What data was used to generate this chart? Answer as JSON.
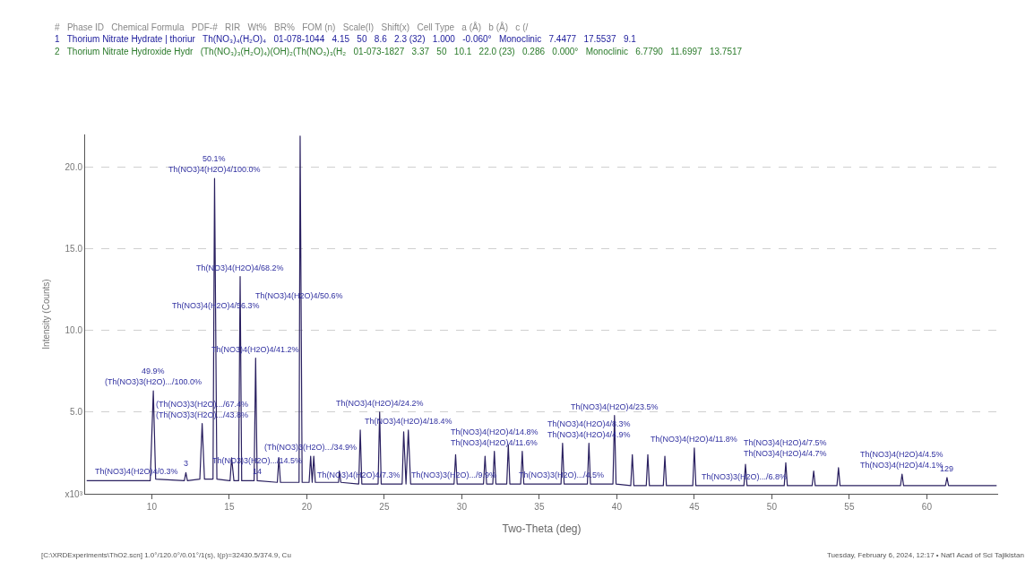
{
  "chart_data": {
    "type": "line",
    "xlabel": "Two-Theta (deg)",
    "ylabel": "Intensity (Counts)",
    "xlim": [
      5.7,
      64.6
    ],
    "xticks": [
      10,
      15,
      20,
      25,
      30,
      35,
      40,
      45,
      50,
      55,
      60
    ],
    "ylim": [
      0,
      22
    ],
    "yticks": [
      {
        "value": 0,
        "label": "x10³"
      },
      {
        "value": 5,
        "label": "5.0"
      },
      {
        "value": 10,
        "label": "10.0"
      },
      {
        "value": 15,
        "label": "15.0"
      },
      {
        "value": 20,
        "label": "20.0"
      }
    ],
    "grid": "y",
    "marker": "none",
    "line_style": "solid",
    "series": [
      {
        "color": "#2a2060",
        "x": [
          5.8,
          9.9,
          10.1,
          10.25,
          12.1,
          12.2,
          12.3,
          13.1,
          13.25,
          13.4,
          13.95,
          14.05,
          14.2,
          15.05,
          15.15,
          15.3,
          15.6,
          15.7,
          15.8,
          16.6,
          16.7,
          16.8,
          18.1,
          18.2,
          18.3,
          19.5,
          19.57,
          19.7,
          20.15,
          20.25,
          20.35,
          20.45,
          20.55,
          22.05,
          22.1,
          22.2,
          23.35,
          23.45,
          23.55,
          24.6,
          24.7,
          24.8,
          26.15,
          26.25,
          26.4,
          26.55,
          26.7,
          29.5,
          29.6,
          29.7,
          31.4,
          31.5,
          31.6,
          32.0,
          32.1,
          32.2,
          32.9,
          33.0,
          33.1,
          33.8,
          33.9,
          34.0,
          36.4,
          36.5,
          36.6,
          38.1,
          38.2,
          38.3,
          39.75,
          39.85,
          39.95,
          40.9,
          41.0,
          41.1,
          41.9,
          42.0,
          42.1,
          43.0,
          43.1,
          43.2,
          44.9,
          45.0,
          45.1,
          48.2,
          48.3,
          48.4,
          50.8,
          50.9,
          51.0,
          52.6,
          52.7,
          52.8,
          54.2,
          54.3,
          54.4,
          58.3,
          58.4,
          58.5,
          61.2,
          61.3,
          61.4,
          64.5
        ],
        "values": [
          0.8,
          0.8,
          6.3,
          0.9,
          0.8,
          1.3,
          0.8,
          0.9,
          4.3,
          0.9,
          0.9,
          19.3,
          0.9,
          0.8,
          2.2,
          0.8,
          0.8,
          13.3,
          0.8,
          0.8,
          8.3,
          0.8,
          0.7,
          2.2,
          0.7,
          0.7,
          21.9,
          0.7,
          0.7,
          2.3,
          0.7,
          2.3,
          0.7,
          0.7,
          1.4,
          0.7,
          0.6,
          3.9,
          0.6,
          0.6,
          5.0,
          0.6,
          0.6,
          3.8,
          0.6,
          3.9,
          0.6,
          0.6,
          2.4,
          0.6,
          0.6,
          2.3,
          0.6,
          0.6,
          2.6,
          0.6,
          0.6,
          3.0,
          0.6,
          0.6,
          2.6,
          0.6,
          0.6,
          3.1,
          0.6,
          0.6,
          3.1,
          0.6,
          0.6,
          4.8,
          0.6,
          0.5,
          2.4,
          0.5,
          0.5,
          2.4,
          0.5,
          0.5,
          2.3,
          0.5,
          0.5,
          2.8,
          0.5,
          0.5,
          1.8,
          0.5,
          0.5,
          1.9,
          0.5,
          0.5,
          1.4,
          0.5,
          0.5,
          1.6,
          0.5,
          0.5,
          1.2,
          0.5,
          0.5,
          1.0,
          0.5,
          0.5
        ]
      }
    ],
    "annotations": [
      "#   Phase ID   Chemical Formula   PDF-#   RIR   Wt%   BR%   FOM (n)   Scale(I)   Shift(x)   Cell Type   a (Å)   b (Å)   c (/",
      "1   Thorium Nitrate Hydrate | thoriur   Th(NO₃)₄(H₂O)₄   01-078-1044   4.15   50   8.6   2.3 (32)   1.000   -0.060°   Monoclinic   7.4477   17.5537   9.1",
      "2   Thorium Nitrate Hydroxide Hydr   (Th(NO₃)₃(H₂O)₄)(OH)₂(Th(NO₃)₃(H₂   01-073-1827   3.37   50   10.1   22.0 (23)   0.286   0.000°   Monoclinic   6.7790   11.6997   13.7517",
      "[C:\\XRDExperiments\\ThO2.scn] 1.0°/120.0°/0.01°/1(s), I(p)=32430.5/374.9, Cu",
      "Tuesday, February 6, 2024, 12:17 • Nat'l Acad of Sci Tajikistan",
      {
        "text": "50.1%",
        "x": 14.05,
        "y": 19.3
      },
      {
        "text": "Th(NO3)4(H2O)4/100.0%",
        "x": 14.05,
        "y": 19.3
      },
      {
        "text": "Th(NO3)4(H2O)4/68.2%",
        "x": 15.7,
        "y": 13.3
      },
      {
        "text": "Th(NO3)4(H2O)4/50.6%",
        "x": 19.536,
        "y": 11.6
      },
      {
        "text": "Th(NO3)4(H2O)4/56.3%",
        "x": 14.118,
        "y": 11.0
      },
      {
        "text": "Th(NO3)4(H2O)4/41.2%",
        "x": 16.7,
        "y": 8.3
      },
      {
        "text": "49.9%",
        "x": 10.1,
        "y": 6.3
      },
      {
        "text": "(Th(NO3)3(H2O).../100.0%",
        "x": 10.1,
        "y": 6.3
      },
      {
        "text": "(Th(NO3)3(H2O).../67.4%",
        "x": 13.25,
        "y": 4.3
      },
      {
        "text": "(Th(NO3)3(H2O).../43.8%",
        "x": 13.25,
        "y": 4.3
      },
      {
        "text": "Th(NO3)4(H2O)4/0.3%",
        "x": 9.0,
        "y": 0.8
      },
      {
        "text": "3",
        "x": 12.2,
        "y": 1.3
      },
      {
        "text": "Th(NO3)3(H2O).../14.5%",
        "x": 16.8,
        "y": 0.8
      },
      {
        "text": "14",
        "x": 16.8,
        "y": 0.8
      },
      {
        "text": "(Th(NO3)3(H2O).../34.9%",
        "x": 20.25,
        "y": 2.3
      },
      {
        "text": "Th(NO3)4(H2O)4/24.2%",
        "x": 24.7,
        "y": 5.0
      },
      {
        "text": "Th(NO3)4(H2O)4/18.4%",
        "x": 26.55,
        "y": 3.9
      },
      {
        "text": "Th(NO3)4(H2O)4/7.3%",
        "x": 23.35,
        "y": 0.6
      },
      {
        "text": "Th(NO3)3(H2O).../9.9%",
        "x": 29.5,
        "y": 0.6
      },
      {
        "text": "Th(NO3)4(H2O)4/14.8%",
        "x": 32.1,
        "y": 2.6
      },
      {
        "text": "Th(NO3)4(H2O)4/11.6%",
        "x": 32.1,
        "y": 2.6
      },
      {
        "text": "Th(NO3)4(H2O)4/8.3%",
        "x": 38.2,
        "y": 3.1
      },
      {
        "text": "Th(NO3)4(H2O)4/4.9%",
        "x": 38.2,
        "y": 3.1
      },
      {
        "text": "Th(NO3)3(H2O).../4.5%",
        "x": 36.4,
        "y": 0.6
      },
      {
        "text": "Th(NO3)4(H2O)4/23.5%",
        "x": 39.85,
        "y": 4.8
      },
      {
        "text": "Th(NO3)4(H2O)4/11.8%",
        "x": 45.0,
        "y": 2.8
      },
      {
        "text": "Th(NO3)4(H2O)4/7.5%",
        "x": 50.9,
        "y": 1.9
      },
      {
        "text": "Th(NO3)4(H2O)4/4.7%",
        "x": 50.9,
        "y": 1.9
      },
      {
        "text": "Th(NO3)3(H2O).../6.8%",
        "x": 48.2,
        "y": 0.5
      },
      {
        "text": "Th(NO3)4(H2O)4/4.5%",
        "x": 58.4,
        "y": 1.2
      },
      {
        "text": "Th(NO3)4(H2O)4/4.1%",
        "x": 58.4,
        "y": 1.2
      },
      {
        "text": "129",
        "x": 61.3,
        "y": 1.0
      }
    ]
  }
}
